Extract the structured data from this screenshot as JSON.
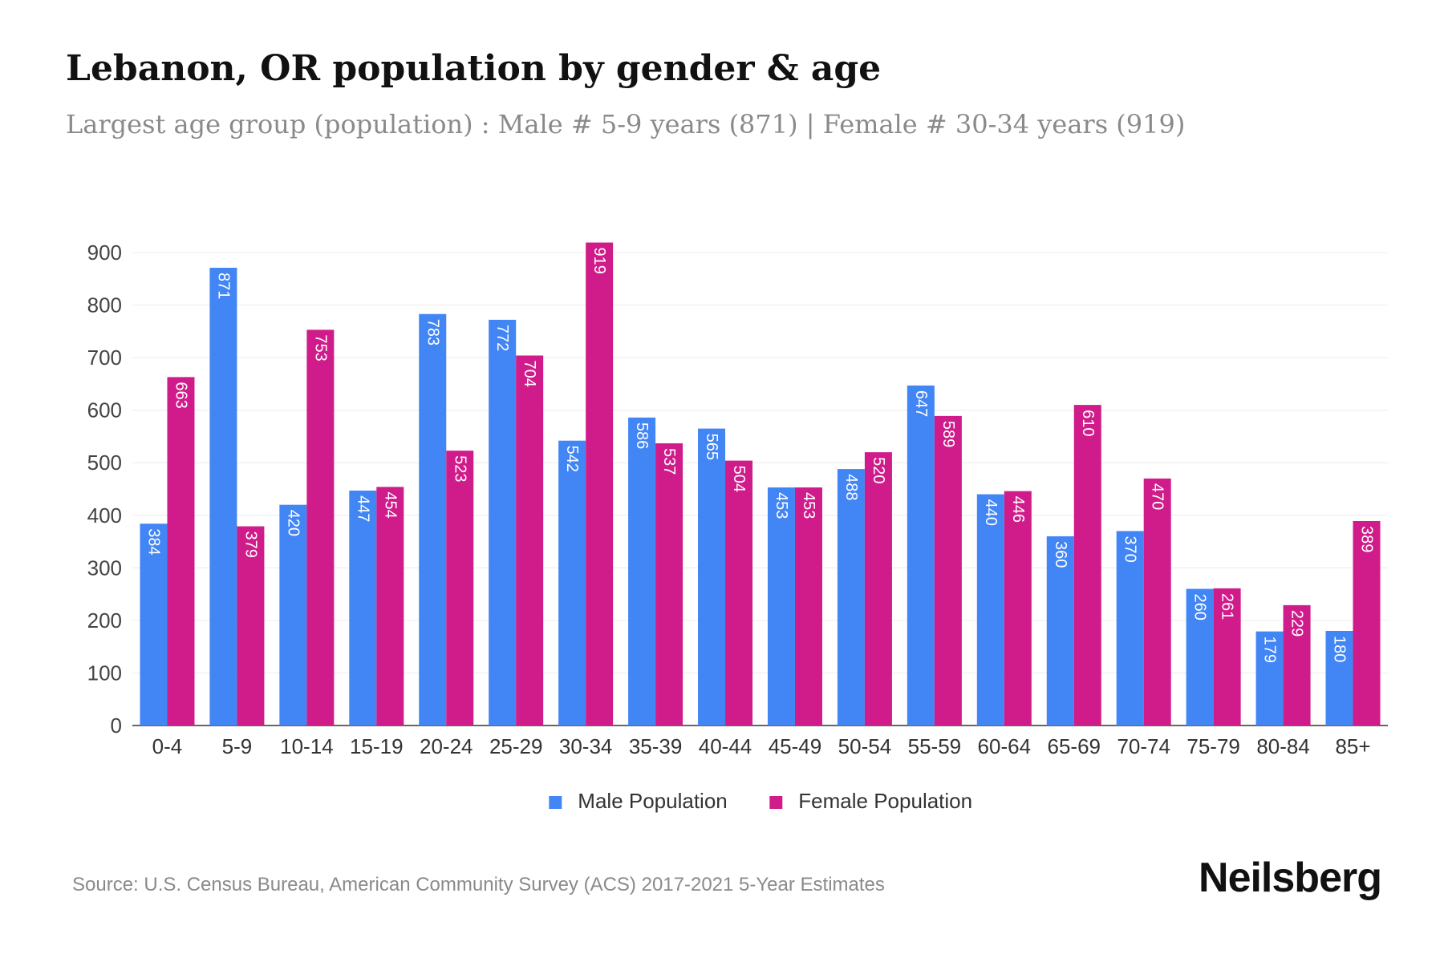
{
  "header": {
    "title": "Lebanon, OR population by gender & age",
    "subtitle": "Largest age group (population) : Male # 5-9 years (871) | Female # 30-34 years (919)"
  },
  "footer": {
    "source": "Source: U.S. Census Bureau, American Community Survey (ACS) 2017-2021 5-Year Estimates",
    "brand": "Neilsberg"
  },
  "chart_data": {
    "type": "bar",
    "title": "Lebanon, OR population by gender & age",
    "subtitle": "Largest age group (population) : Male # 5-9 years (871) | Female # 30-34 years (919)",
    "xlabel": "",
    "ylabel": "",
    "ylim": [
      0,
      900
    ],
    "yticks": [
      0,
      100,
      200,
      300,
      400,
      500,
      600,
      700,
      800,
      900
    ],
    "grid": true,
    "legend_position": "bottom-center",
    "categories": [
      "0-4",
      "5-9",
      "10-14",
      "15-19",
      "20-24",
      "25-29",
      "30-34",
      "35-39",
      "40-44",
      "45-49",
      "50-54",
      "55-59",
      "60-64",
      "65-69",
      "70-74",
      "75-79",
      "80-84",
      "85+"
    ],
    "series": [
      {
        "name": "Male Population",
        "color": "#4285f4",
        "values": [
          384,
          871,
          420,
          447,
          783,
          772,
          542,
          586,
          565,
          453,
          488,
          647,
          440,
          360,
          370,
          260,
          179,
          180
        ]
      },
      {
        "name": "Female Population",
        "color": "#d01c8b",
        "values": [
          663,
          379,
          753,
          454,
          523,
          704,
          919,
          537,
          504,
          453,
          520,
          589,
          446,
          610,
          470,
          261,
          229,
          389
        ]
      }
    ]
  }
}
